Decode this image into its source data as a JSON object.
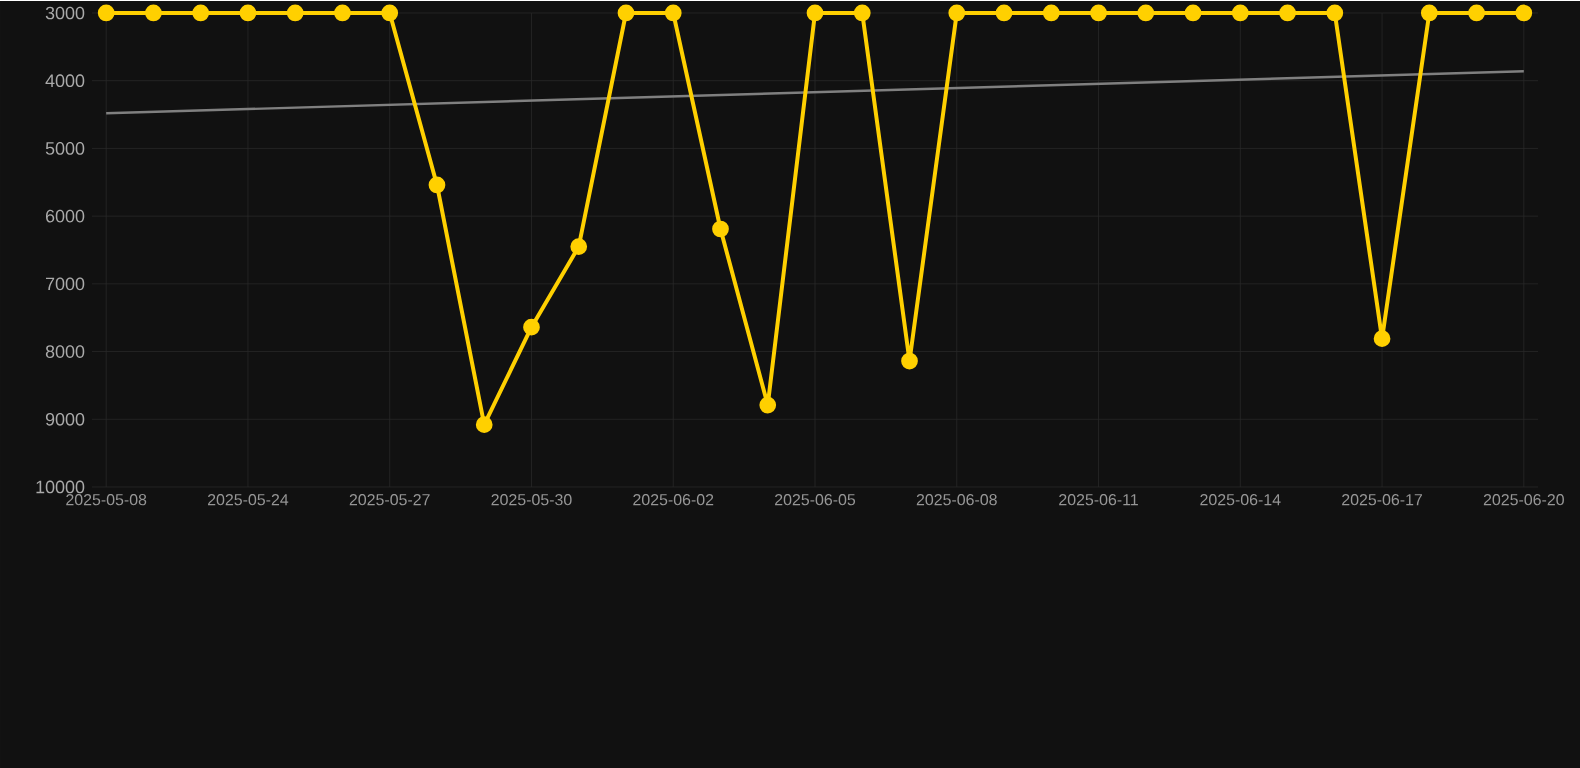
{
  "chart_data": {
    "type": "line",
    "categories": [
      "2025-05-08",
      null,
      null,
      "2025-05-24",
      null,
      null,
      "2025-05-27",
      null,
      null,
      "2025-05-30",
      null,
      null,
      "2025-06-02",
      null,
      null,
      "2025-06-05",
      null,
      null,
      "2025-06-08",
      null,
      null,
      "2025-06-11",
      null,
      null,
      "2025-06-14",
      null,
      null,
      "2025-06-17",
      null,
      null,
      "2025-06-20"
    ],
    "series": [
      {
        "color": "#ffd000",
        "marker": "circle",
        "values": [
          3000,
          3000,
          3000,
          3000,
          3000,
          3000,
          3000,
          5540,
          9080,
          7640,
          6450,
          3000,
          3000,
          6190,
          8790,
          3000,
          3000,
          8140,
          3000,
          3000,
          3000,
          3000,
          3000,
          3000,
          3000,
          3000,
          3000,
          7810,
          3000,
          3000,
          3000
        ]
      },
      {
        "color": "#808080",
        "marker": "none",
        "values": [
          4480,
          null,
          null,
          null,
          null,
          null,
          null,
          null,
          null,
          null,
          null,
          null,
          null,
          null,
          null,
          null,
          null,
          null,
          null,
          null,
          null,
          null,
          null,
          null,
          null,
          null,
          null,
          null,
          null,
          null,
          3860
        ]
      }
    ],
    "ylim": [
      10000,
      3000
    ],
    "yticks": [
      3000,
      4000,
      5000,
      6000,
      7000,
      8000,
      9000,
      10000
    ],
    "grid": true,
    "legend": false,
    "line_style": "solid"
  }
}
